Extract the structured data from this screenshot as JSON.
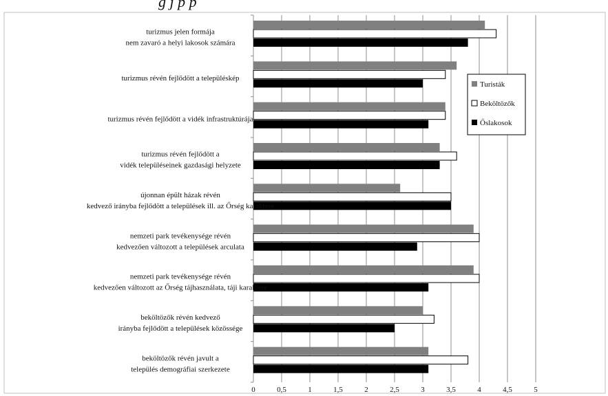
{
  "header_fragment": "g                                      j              p   p",
  "chart_data": {
    "type": "bar",
    "orientation": "horizontal",
    "categories": [
      [
        "turizmus jelen formája",
        "nem zavaró a helyi lakosok számára"
      ],
      [
        "turizmus révén fejlődött a településkép"
      ],
      [
        "turizmus révén fejlődött a vidék infrastruktúrája"
      ],
      [
        "turizmus révén fejlődött a",
        "vidék településeinek gazdasági helyzete"
      ],
      [
        "újonnan épült házak révén",
        "kedvező irányba fejlődött a települések ill. az Őrség karaktere"
      ],
      [
        "nemzeti park tevékenysége révén",
        "kedvezően változott a települések arculata"
      ],
      [
        "nemzeti park tevékenysége révén",
        "kedvezően változott az Őrség tájhasználata, táji karaktere"
      ],
      [
        "beköltözők révén kedvező",
        "irányba fejlődött a települések közössége"
      ],
      [
        "beköltözők révén javult a",
        "település demográfiai szerkezete"
      ]
    ],
    "series": [
      {
        "name": "Turisták",
        "color": "#808080",
        "values": [
          4.1,
          3.6,
          3.4,
          3.3,
          2.6,
          3.9,
          3.9,
          3.0,
          3.1
        ]
      },
      {
        "name": "Beköltözők",
        "color": "#ffffff",
        "values": [
          4.3,
          3.4,
          3.4,
          3.6,
          3.5,
          4.0,
          4.0,
          3.2,
          3.8
        ]
      },
      {
        "name": "Őslakosok",
        "color": "#000000",
        "values": [
          3.8,
          3.0,
          3.1,
          3.3,
          3.5,
          2.9,
          3.1,
          2.5,
          3.1
        ]
      }
    ],
    "xlim": [
      0,
      5
    ],
    "xticks": [
      "0",
      "0,5",
      "1",
      "1,5",
      "2",
      "2,5",
      "3",
      "3,5",
      "4",
      "4,5",
      "5"
    ],
    "grid": true,
    "legend_position": "right"
  }
}
